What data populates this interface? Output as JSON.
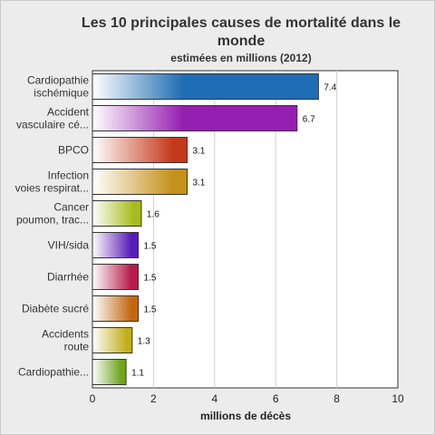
{
  "chart_data": {
    "type": "bar",
    "orientation": "horizontal",
    "title_line1": "Les 10 principales causes de mortalité dans le",
    "title_line2": "monde",
    "subtitle": "estimées en millions (2012)",
    "xlabel": "millions de décès",
    "xlim": [
      0,
      10
    ],
    "xticks": [
      0,
      2,
      4,
      6,
      8,
      10
    ],
    "grid": true,
    "categories": [
      [
        "Cardiopathie",
        "ischémique"
      ],
      [
        "Accident",
        "vasculaire cé..."
      ],
      [
        "BPCO"
      ],
      [
        "Infection",
        "voies respirat..."
      ],
      [
        "Cancer",
        "poumon, trac..."
      ],
      [
        "VIH/sida"
      ],
      [
        "Diarrhée"
      ],
      [
        "Diabète sucré"
      ],
      [
        "Accidents",
        "route"
      ],
      [
        "Cardiopathie..."
      ]
    ],
    "values": [
      7.4,
      6.7,
      3.1,
      3.1,
      1.6,
      1.5,
      1.5,
      1.5,
      1.3,
      1.1
    ],
    "value_labels": [
      "7.4",
      "6.7",
      "3.1",
      "3.1",
      "1.6",
      "1.5",
      "1.5",
      "1.5",
      "1.3",
      "1.1"
    ],
    "colors": [
      "#1f6db3",
      "#951fb0",
      "#c4391b",
      "#c4921b",
      "#a5bc1a",
      "#5a1bb8",
      "#b81b4c",
      "#c3670e",
      "#c2b01b",
      "#6fa51d"
    ]
  }
}
